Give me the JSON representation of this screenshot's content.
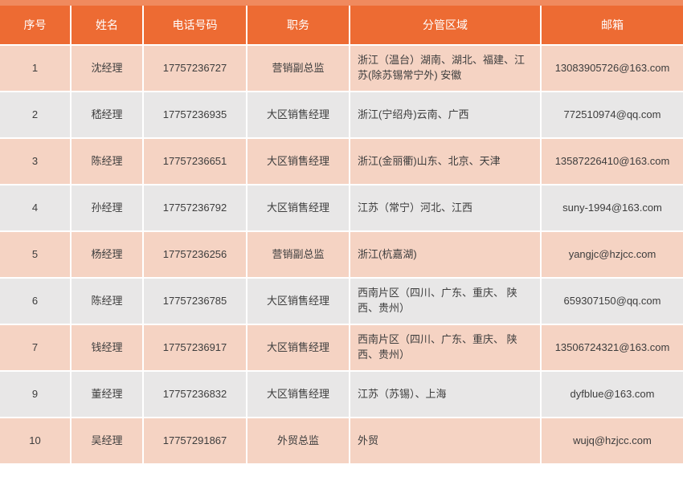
{
  "colors": {
    "header_bg": "#ED6B33",
    "header_strip": "#F08A5E",
    "row_odd_bg": "#F5D3C3",
    "row_even_bg": "#E8E7E7",
    "text_color": "#3D3D3D",
    "header_text": "#FFFFFF"
  },
  "table": {
    "columns": [
      {
        "key": "index",
        "label": "序号"
      },
      {
        "key": "name",
        "label": "姓名"
      },
      {
        "key": "phone",
        "label": "电话号码"
      },
      {
        "key": "title",
        "label": "职务"
      },
      {
        "key": "region",
        "label": "分管区域"
      },
      {
        "key": "email",
        "label": "邮箱"
      }
    ],
    "rows": [
      {
        "index": "1",
        "name": "沈经理",
        "phone": "17757236727",
        "title": "营销副总监",
        "region": "浙江（温台）湖南、湖北、福建、江苏(除苏锡常宁外) 安徽",
        "email": "13083905726@163.com"
      },
      {
        "index": "2",
        "name": "嵇经理",
        "phone": "17757236935",
        "title": "大区销售经理",
        "region": "浙江(宁绍舟)云南、广西",
        "email": "772510974@qq.com"
      },
      {
        "index": "3",
        "name": "陈经理",
        "phone": "17757236651",
        "title": "大区销售经理",
        "region": "浙江(金丽衢)山东、北京、天津",
        "email": "13587226410@163.com"
      },
      {
        "index": "4",
        "name": "孙经理",
        "phone": "17757236792",
        "title": "大区销售经理",
        "region": "江苏（常宁）河北、江西",
        "email": "suny-1994@163.com"
      },
      {
        "index": "5",
        "name": "杨经理",
        "phone": "17757236256",
        "title": "营销副总监",
        "region": "浙江(杭嘉湖)",
        "email": "yangjc@hzjcc.com"
      },
      {
        "index": "6",
        "name": "陈经理",
        "phone": "17757236785",
        "title": "大区销售经理",
        "region": "西南片区（四川、广东、重庆、 陕西、贵州）",
        "email": "659307150@qq.com"
      },
      {
        "index": "7",
        "name": "钱经理",
        "phone": "17757236917",
        "title": "大区销售经理",
        "region": "西南片区（四川、广东、重庆、 陕西、贵州）",
        "email": "13506724321@163.com"
      },
      {
        "index": "9",
        "name": "董经理",
        "phone": "17757236832",
        "title": "大区销售经理",
        "region": "江苏（苏锡）、上海",
        "email": "dyfblue@163.com"
      },
      {
        "index": "10",
        "name": "吴经理",
        "phone": "17757291867",
        "title": "外贸总监",
        "region": "外贸",
        "email": "wujq@hzjcc.com"
      }
    ]
  }
}
